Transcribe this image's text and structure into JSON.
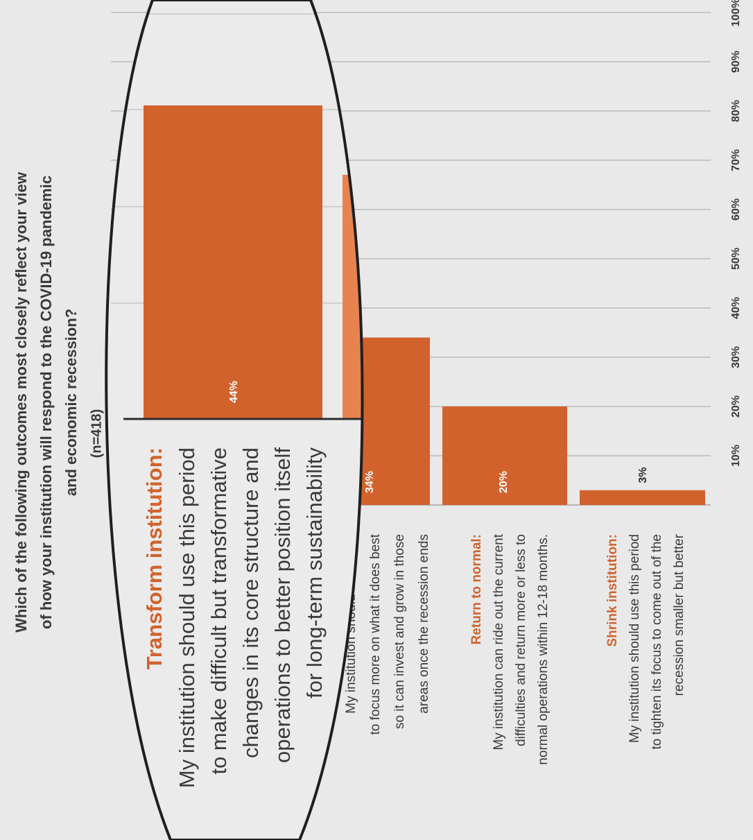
{
  "chart_data": {
    "type": "bar",
    "title": "Which of the following outcomes most closely reflect your view of how your institution will respond to the COVID-19 pandemic and economic recession?",
    "subtitle": "(n=418)",
    "title_lines": [
      "Which of the following outcomes most closely reflect your view",
      "of how your institution will respond to the COVID-19 pandemic",
      "and economic recession?"
    ],
    "orientation": "rotated",
    "xlim": [
      0,
      100
    ],
    "ticks": [
      "10%",
      "20%",
      "30%",
      "40%",
      "50%",
      "60%",
      "70%",
      "80%",
      "90%",
      "100%"
    ],
    "grid": true,
    "categories": [
      {
        "label": "Transform institution:",
        "lines": [
          "My institution should use this period",
          "to make difficult but transformative",
          "changes in its core structure and",
          "operations to better position itself",
          "for long-term sustainability"
        ]
      },
      {
        "label": "",
        "lines": [
          "My institution should use this p",
          "to focus more on what it does best",
          "so it can invest and grow in those",
          "areas once the recession ends"
        ]
      },
      {
        "label": "Return to normal:",
        "lines": [
          "My institution can ride out the current",
          "difficulties and return more or less to",
          "normal operations within 12-18 months."
        ]
      },
      {
        "label": "Shrink institution:",
        "lines": [
          "My institution should use this period",
          "to tighten its focus to come out of the",
          "recession smaller but better"
        ]
      }
    ],
    "values": [
      44,
      34,
      20,
      3
    ],
    "data_labels": [
      "44%",
      "34%",
      "20%",
      "3%"
    ],
    "colors": {
      "bar": "#d2622c",
      "background": "#e9e9e9",
      "grid": "#c6c6c6",
      "highlight_text": "#d2622c",
      "text": "#3a3a3a"
    },
    "annotation": "magnifier lens enlarging the 44% bar and the Transform institution label"
  }
}
